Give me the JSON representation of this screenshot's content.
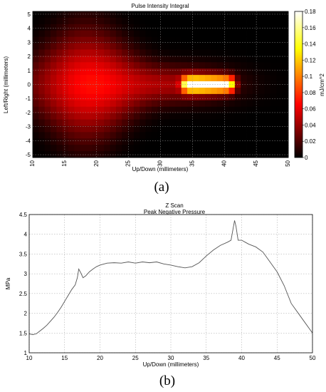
{
  "chart_data": [
    {
      "type": "heatmap",
      "title": "Pulse Intensity Integral",
      "xlabel": "Up/Down (millimeters)",
      "ylabel": "Left/Right (millimeters)",
      "colorbar_label": "mJ/cm^2",
      "colormap": "hot",
      "xlim": [
        10,
        50
      ],
      "ylim": [
        -5.2,
        5.2
      ],
      "x_ticks": [
        10,
        15,
        20,
        25,
        30,
        35,
        40,
        45,
        50
      ],
      "y_ticks": [
        -5,
        -4,
        -3,
        -2,
        -1,
        0,
        1,
        2,
        3,
        4,
        5
      ],
      "colorbar_range": [
        0,
        0.18
      ],
      "colorbar_ticks": [
        0,
        0.02,
        0.04,
        0.06,
        0.08,
        0.1,
        0.12,
        0.14,
        0.16,
        0.18
      ],
      "grid": true,
      "panel_label": "(a)"
    },
    {
      "type": "line",
      "title": "Z Scan",
      "subtitle": "Peak Negative Pressure",
      "xlabel": "Up/Down (millimeters)",
      "ylabel": "MPa",
      "xlim": [
        10,
        50
      ],
      "ylim": [
        1,
        4.5
      ],
      "x_ticks": [
        10,
        15,
        20,
        25,
        30,
        35,
        40,
        45,
        50
      ],
      "y_ticks": [
        1,
        1.5,
        2,
        2.5,
        3,
        3.5,
        4,
        4.5
      ],
      "grid": true,
      "series": [
        {
          "color": "#555555",
          "x": [
            10,
            10.5,
            11,
            11.5,
            12,
            12.5,
            13,
            13.5,
            14,
            14.5,
            15,
            15.5,
            16,
            16.5,
            16.8,
            17,
            17.3,
            17.6,
            18,
            18.5,
            19,
            19.5,
            20,
            21,
            22,
            23,
            24,
            25,
            26,
            27,
            28,
            29,
            30,
            31,
            32,
            33,
            34,
            35,
            36,
            37,
            38,
            38.5,
            39,
            39.2,
            39.5,
            40,
            40.5,
            41,
            42,
            43,
            44,
            45,
            46,
            47,
            48,
            49,
            50
          ],
          "values": [
            1.48,
            1.46,
            1.48,
            1.55,
            1.62,
            1.7,
            1.8,
            1.9,
            2.02,
            2.15,
            2.3,
            2.45,
            2.6,
            2.72,
            2.9,
            3.12,
            3.02,
            2.9,
            2.95,
            3.05,
            3.12,
            3.18,
            3.22,
            3.27,
            3.28,
            3.27,
            3.3,
            3.27,
            3.3,
            3.28,
            3.3,
            3.25,
            3.22,
            3.18,
            3.15,
            3.18,
            3.28,
            3.45,
            3.6,
            3.72,
            3.8,
            3.85,
            4.35,
            4.2,
            3.85,
            3.85,
            3.8,
            3.75,
            3.68,
            3.55,
            3.3,
            3.05,
            2.7,
            2.25,
            2.0,
            1.75,
            1.5
          ]
        }
      ],
      "panel_label": "(b)"
    }
  ]
}
